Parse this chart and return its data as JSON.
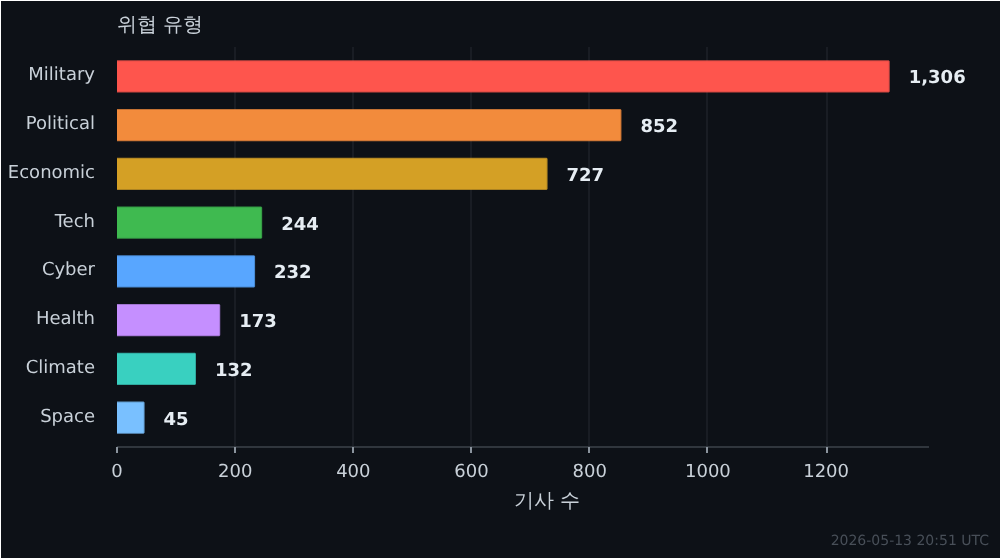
{
  "chart_data": {
    "type": "bar",
    "orientation": "horizontal",
    "title": "위협 유형",
    "xlabel": "기사 수",
    "categories": [
      "Military",
      "Political",
      "Economic",
      "Tech",
      "Cyber",
      "Health",
      "Climate",
      "Space"
    ],
    "values": [
      1306,
      852,
      727,
      244,
      232,
      173,
      132,
      45
    ],
    "colors": [
      "#fe554d",
      "#f28b3c",
      "#d4a025",
      "#3fba50",
      "#58a6ff",
      "#c58fff",
      "#39d0c0",
      "#79c0ff"
    ],
    "value_labels": [
      "1,306",
      "852",
      "727",
      "244",
      "232",
      "173",
      "132",
      "45"
    ],
    "xlim": [
      0,
      1373
    ],
    "xticks": [
      0,
      200,
      400,
      600,
      800,
      1000,
      1200
    ],
    "grid": "x",
    "annotations": [
      "2026-05-13 20:51 UTC"
    ]
  }
}
